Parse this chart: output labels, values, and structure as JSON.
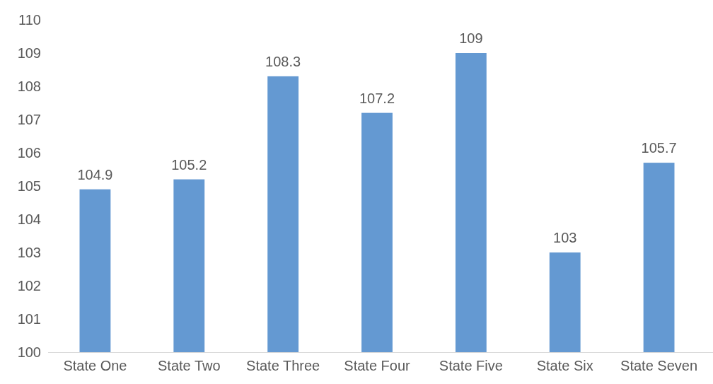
{
  "chart_data": {
    "type": "bar",
    "categories": [
      "State One",
      "State Two",
      "State Three",
      "State Four",
      "State Five",
      "State Six",
      "State Seven"
    ],
    "values": [
      104.9,
      105.2,
      108.3,
      107.2,
      109,
      103,
      105.7
    ],
    "color": "#6499d2",
    "ylim": [
      100,
      110
    ],
    "yticks": [
      100,
      101,
      102,
      103,
      104,
      105,
      106,
      107,
      108,
      109,
      110
    ],
    "grid": false,
    "data_labels": true
  }
}
